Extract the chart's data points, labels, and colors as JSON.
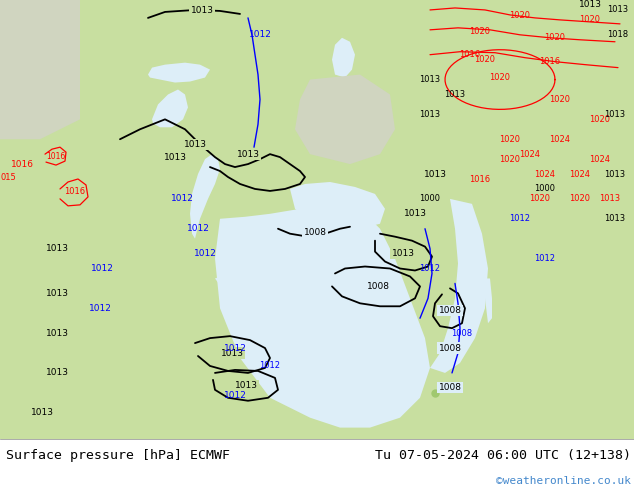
{
  "title_left": "Surface pressure [hPa] ECMWF",
  "title_right": "Tu 07-05-2024 06:00 UTC (12+138)",
  "watermark": "©weatheronline.co.uk",
  "watermark_color": "#4488cc",
  "bottom_bar_color": "#ffffff",
  "fig_width": 6.34,
  "fig_height": 4.9,
  "dpi": 100,
  "map_bg": "#c8dfa0",
  "sea_color": "#ddeef8",
  "land_gray": "#b8b8b8",
  "title_fontsize": 9.5,
  "watermark_fontsize": 8
}
